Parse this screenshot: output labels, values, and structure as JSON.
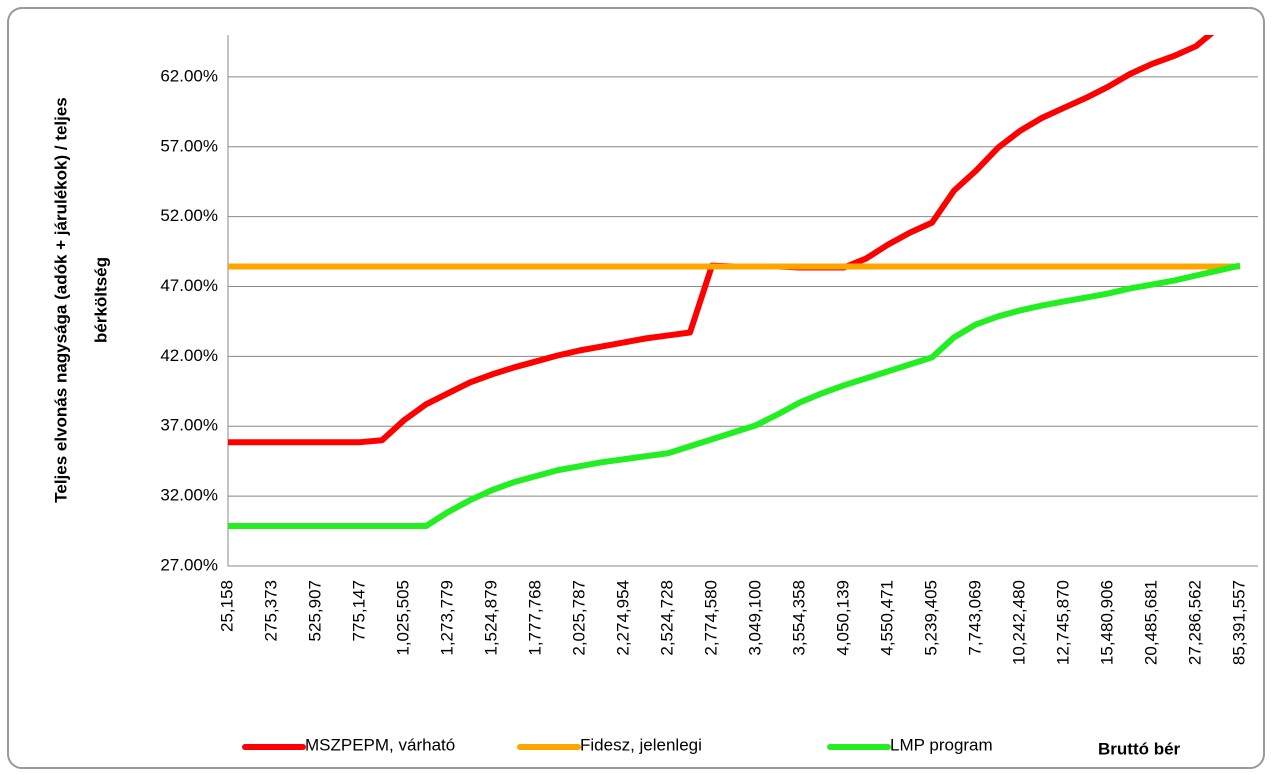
{
  "chart_data": {
    "type": "line",
    "ylabel": [
      "Teljes elvonás nagysága (adók + járulékok) / teljes",
      "bérköltség"
    ],
    "xlabel": "Bruttó bér",
    "categories": [
      "25,158",
      null,
      "275,373",
      null,
      "525,907",
      null,
      "775,147",
      null,
      "1,025,505",
      null,
      "1,273,779",
      null,
      "1,524,879",
      null,
      "1,777,768",
      null,
      "2,025,787",
      null,
      "2,274,954",
      null,
      "2,524,728",
      null,
      "2,774,580",
      null,
      "3,049,100",
      null,
      "3,554,358",
      null,
      "4,050,139",
      null,
      "4,550,471",
      null,
      "5,239,405",
      null,
      "7,743,069",
      null,
      "10,242,480",
      null,
      "12,745,870",
      null,
      "15,480,906",
      null,
      "20,485,681",
      null,
      "27,286,562",
      null,
      "85,391,557"
    ],
    "series": [
      {
        "name": "MSZPEPM, várható",
        "color": "#ff0000",
        "values": [
          35.86,
          35.86,
          35.86,
          35.86,
          35.86,
          35.86,
          35.86,
          36.0,
          37.43,
          38.57,
          39.36,
          40.14,
          40.71,
          41.21,
          41.64,
          42.07,
          42.43,
          42.71,
          43.0,
          43.29,
          43.5,
          43.71,
          48.5,
          48.43,
          48.43,
          48.43,
          48.36,
          48.36,
          48.36,
          49.0,
          50.0,
          50.86,
          51.57,
          53.86,
          55.29,
          56.93,
          58.14,
          59.07,
          59.79,
          60.5,
          61.29,
          62.21,
          62.93,
          63.5,
          64.2,
          65.5,
          66.5
        ]
      },
      {
        "name": "Fidesz, jelenlegi",
        "color": "#ffa500",
        "values": [
          48.43,
          48.43,
          48.43,
          48.43,
          48.43,
          48.43,
          48.43,
          48.43,
          48.43,
          48.43,
          48.43,
          48.43,
          48.43,
          48.43,
          48.43,
          48.43,
          48.43,
          48.43,
          48.43,
          48.43,
          48.43,
          48.43,
          48.43,
          48.43,
          48.43,
          48.43,
          48.43,
          48.43,
          48.43,
          48.43,
          48.43,
          48.43,
          48.43,
          48.43,
          48.43,
          48.43,
          48.43,
          48.43,
          48.43,
          48.43,
          48.43,
          48.43,
          48.43,
          48.43,
          48.43,
          48.43,
          48.43
        ]
      },
      {
        "name": "LMP program",
        "color": "#22ee22",
        "values": [
          29.86,
          29.86,
          29.86,
          29.86,
          29.86,
          29.86,
          29.86,
          29.86,
          29.86,
          29.86,
          30.86,
          31.71,
          32.43,
          33.0,
          33.43,
          33.86,
          34.14,
          34.43,
          34.64,
          34.86,
          35.07,
          35.57,
          36.07,
          36.57,
          37.07,
          37.86,
          38.71,
          39.36,
          39.93,
          40.43,
          40.93,
          41.43,
          41.93,
          43.36,
          44.29,
          44.86,
          45.29,
          45.64,
          45.93,
          46.21,
          46.5,
          46.86,
          47.14,
          47.43,
          47.79,
          48.14,
          48.5
        ]
      }
    ],
    "ylim": [
      27,
      65
    ],
    "yticks": [
      {
        "value": 27,
        "label": "27.00%"
      },
      {
        "value": 32,
        "label": "32.00%"
      },
      {
        "value": 37,
        "label": "37.00%"
      },
      {
        "value": 42,
        "label": "42.00%"
      },
      {
        "value": 47,
        "label": "47.00%"
      },
      {
        "value": 52,
        "label": "52.00%"
      },
      {
        "value": 57,
        "label": "57.00%"
      },
      {
        "value": 62,
        "label": "62.00%"
      }
    ],
    "grid": true
  }
}
